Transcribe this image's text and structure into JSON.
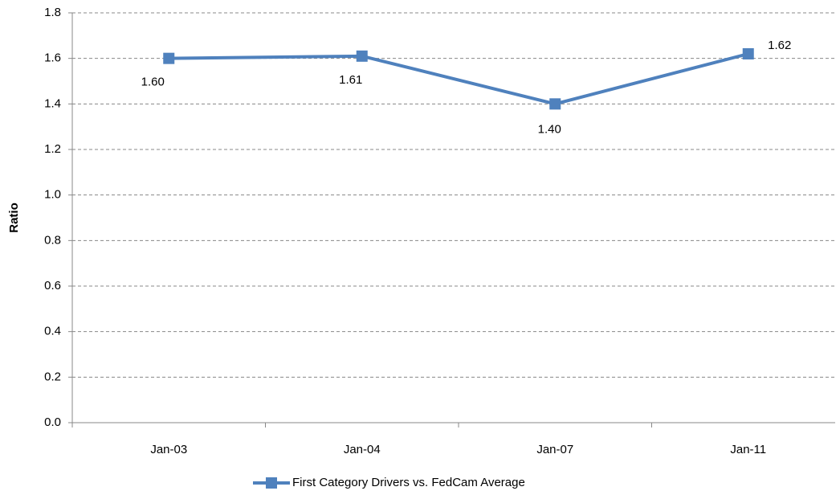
{
  "chart_data": {
    "type": "line",
    "y_label": "Ratio",
    "categories": [
      "Jan-03",
      "Jan-04",
      "Jan-07",
      "Jan-11"
    ],
    "series": [
      {
        "name": "First Category Drivers vs. FedCam Average",
        "color": "#4f81bd",
        "values": [
          1.6,
          1.61,
          1.4,
          1.62
        ],
        "value_labels": [
          "1.60",
          "1.61",
          "1.40",
          "1.62"
        ]
      }
    ],
    "ylim": [
      0,
      1.8
    ],
    "yticks": [
      {
        "value": 0,
        "label": "0.0"
      },
      0.2,
      0.4,
      0.6,
      0.8,
      {
        "value": 1,
        "label": "1.0"
      },
      1.2,
      1.4,
      1.6,
      1.8
    ],
    "grid": true,
    "legend": "bottom"
  }
}
